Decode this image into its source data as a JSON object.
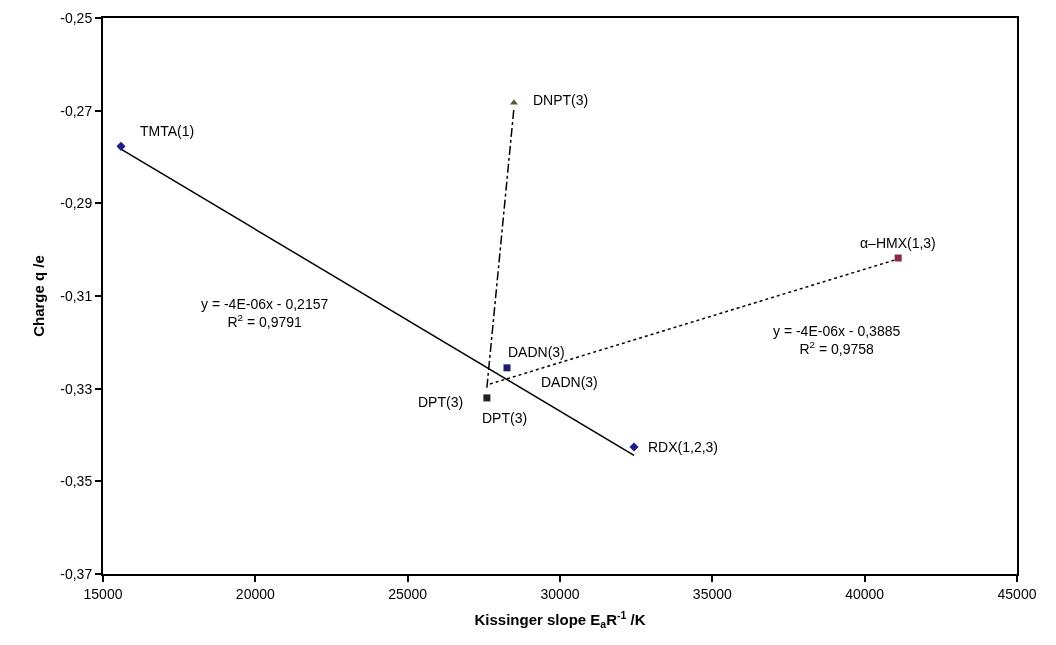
{
  "chart_data": {
    "type": "scatter",
    "xlabel": "Kissinger slope E$_{a}$R$^{-1}$ /K",
    "ylabel": "Charge q /e",
    "xlim": [
      15000,
      45000
    ],
    "xticks": [
      15000,
      20000,
      25000,
      30000,
      35000,
      40000,
      45000
    ],
    "ylim": [
      -0.37,
      -0.25
    ],
    "yticks": [
      {
        "value": -0.37,
        "label": "-0,37"
      },
      {
        "value": -0.35,
        "label": "-0,35"
      },
      {
        "value": -0.33,
        "label": "-0,33"
      },
      {
        "value": -0.31,
        "label": "-0,31"
      },
      {
        "value": -0.29,
        "label": "-0,29"
      },
      {
        "value": -0.27,
        "label": "-0,27"
      },
      {
        "value": -0.25,
        "label": "-0,25"
      }
    ],
    "grid": false,
    "series": [
      {
        "type": "line",
        "color": "#000000",
        "line_style": "solid",
        "marker": "none",
        "x": [
          15590,
          32430
        ],
        "values": [
          -0.2783,
          -0.3444
        ]
      },
      {
        "type": "line",
        "color": "#000000",
        "line_style": "dashdot",
        "marker": "none",
        "x": [
          27600,
          28490
        ],
        "values": [
          -0.3298,
          -0.2693
        ]
      },
      {
        "type": "line",
        "color": "#000000",
        "line_style": "dotted",
        "marker": "none",
        "x": [
          27700,
          41100
        ],
        "values": [
          -0.329,
          -0.302
        ]
      },
      {
        "color": "#1c1c8c",
        "marker": "diamond",
        "x": [
          15590,
          32430
        ],
        "values": [
          -0.2777,
          -0.3426
        ]
      },
      {
        "color": "#5a5a30",
        "marker": "triangle",
        "x": [
          28490
        ],
        "values": [
          -0.2683
        ]
      },
      {
        "marker": "square",
        "colors": [
          "#1c1c6c",
          "#202020",
          "#8c2850"
        ],
        "x": [
          28260,
          27600,
          41100
        ],
        "values": [
          -0.3255,
          -0.332,
          -0.3018
        ]
      }
    ],
    "annotations": [
      {
        "text": "TMTA(1)",
        "x": 15590,
        "y": -0.2777
      },
      {
        "text": "DNPT(3)",
        "x": 28490,
        "y": -0.2683
      },
      {
        "text": "DADN(3)",
        "x": 28260,
        "y": -0.3255
      },
      {
        "text": "DADN(3)",
        "x": 28260,
        "y": -0.3255
      },
      {
        "text": "DPT(3)",
        "x": 27600,
        "y": -0.332
      },
      {
        "text": "DPT(3)",
        "x": 27600,
        "y": -0.332
      },
      {
        "text": "RDX(1,2,3)",
        "x": 32430,
        "y": -0.3426
      },
      {
        "text": "α–HMX(1,3)",
        "x": 41100,
        "y": -0.3018
      },
      "y = -4E-06x - 0,2157\nR$^{2}$ = 0,9791",
      "y = -4E-06x - 0,3885\nR$^{2}$ = 0,9758"
    ]
  }
}
